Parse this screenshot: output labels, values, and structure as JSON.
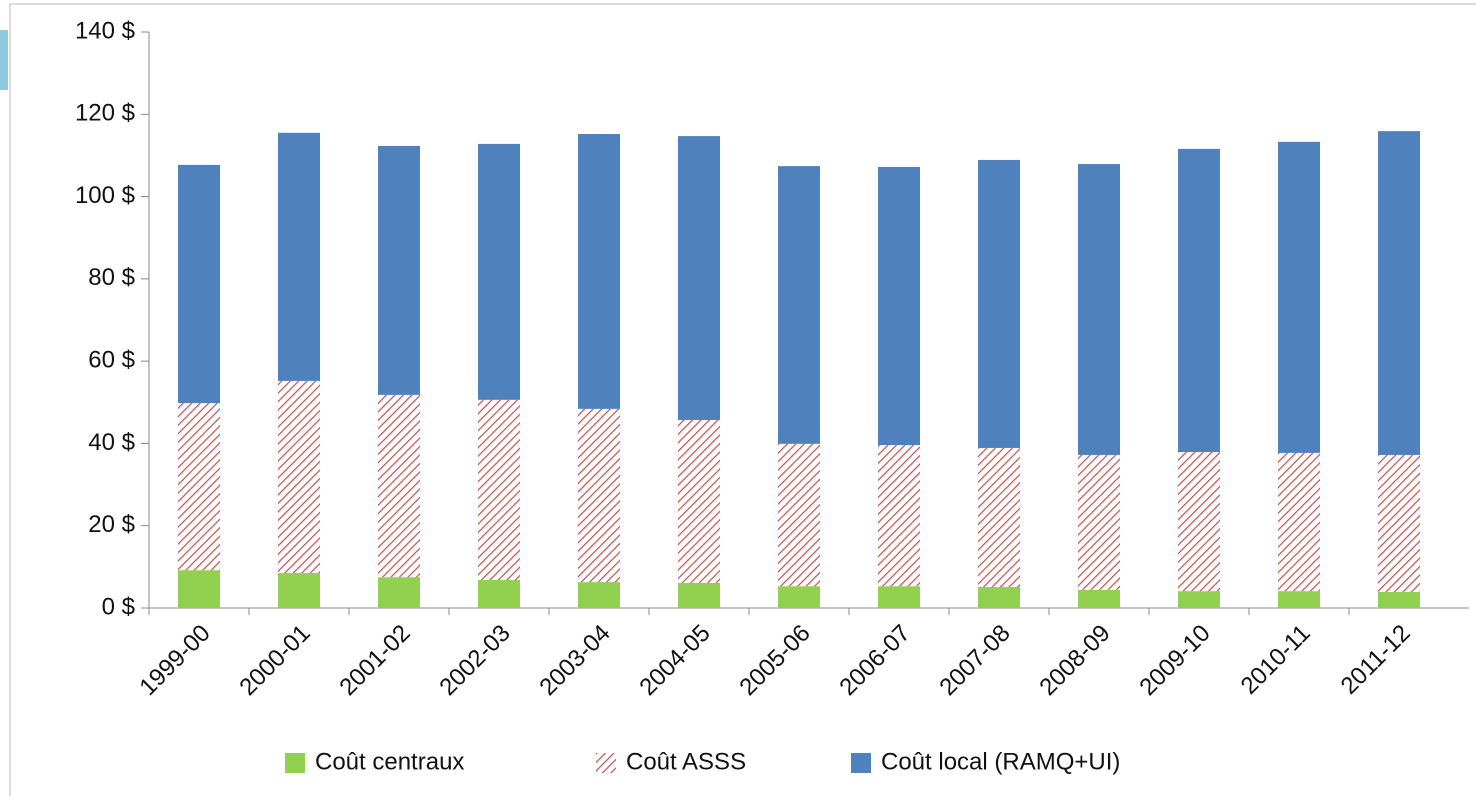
{
  "chart_data": {
    "type": "stacked-bar",
    "categories": [
      "1999-00",
      "2000-01",
      "2001-02",
      "2002-03",
      "2003-04",
      "2004-05",
      "2005-06",
      "2006-07",
      "2007-08",
      "2008-09",
      "2009-10",
      "2010-11",
      "2011-12"
    ],
    "series": [
      {
        "name": "Coût centraux",
        "color": "#92d050",
        "hatch": false,
        "values": [
          9.2,
          8.5,
          7.5,
          6.8,
          6.3,
          6.1,
          5.3,
          5.3,
          5.1,
          4.4,
          4.1,
          4.1,
          3.9
        ]
      },
      {
        "name": "Coût ASSS",
        "color": "#c0504d",
        "hatch": true,
        "values": [
          40.6,
          46.7,
          44.3,
          43.8,
          42.1,
          39.6,
          34.6,
          34.3,
          33.8,
          32.8,
          33.8,
          33.6,
          33.3
        ]
      },
      {
        "name": "Coût local (RAMQ+UI)",
        "color": "#4f81bd",
        "hatch": false,
        "values": [
          57.9,
          60.3,
          60.5,
          62.2,
          66.8,
          69.0,
          67.5,
          67.6,
          70.0,
          70.7,
          73.7,
          75.6,
          78.7
        ]
      }
    ],
    "ylim": [
      0,
      140
    ],
    "yticks": [
      {
        "value": 0,
        "label": "0 $"
      },
      {
        "value": 20,
        "label": "20 $"
      },
      {
        "value": 40,
        "label": "40 $"
      },
      {
        "value": 60,
        "label": "60 $"
      },
      {
        "value": 80,
        "label": "80 $"
      },
      {
        "value": 100,
        "label": "100 $"
      },
      {
        "value": 120,
        "label": "120 $"
      },
      {
        "value": 140,
        "label": "140 $"
      }
    ],
    "grid": false
  }
}
